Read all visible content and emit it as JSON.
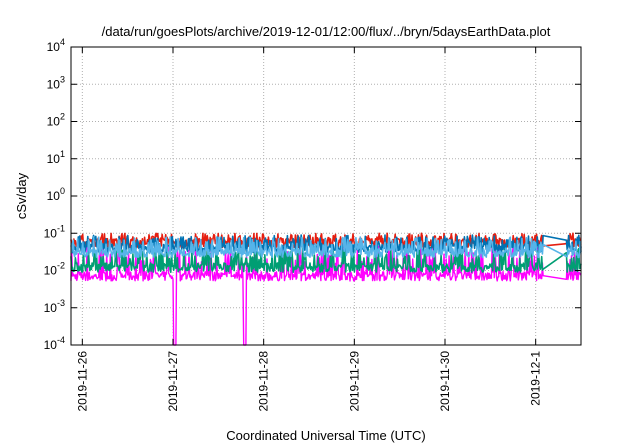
{
  "chart_data": {
    "type": "line",
    "title": "/data/run/goesPlots/archive/2019-12-01/12:00/flux/../bryn/5daysEarthData.plot",
    "xlabel": "Coordinated Universal Time (UTC)",
    "ylabel": "cSv/day",
    "y_scale": "log",
    "ylim": [
      0.0001,
      10000
    ],
    "y_ticks": [
      {
        "value": 0.0001,
        "base": "10",
        "exp": "-4"
      },
      {
        "value": 0.001,
        "base": "10",
        "exp": "-3"
      },
      {
        "value": 0.01,
        "base": "10",
        "exp": "-2"
      },
      {
        "value": 0.1,
        "base": "10",
        "exp": "-1"
      },
      {
        "value": 1,
        "base": "10",
        "exp": "0"
      },
      {
        "value": 10,
        "base": "10",
        "exp": "1"
      },
      {
        "value": 100,
        "base": "10",
        "exp": "2"
      },
      {
        "value": 1000,
        "base": "10",
        "exp": "3"
      },
      {
        "value": 10000,
        "base": "10",
        "exp": "4"
      }
    ],
    "xlim": [
      "2019-11-25T21:00",
      "2019-12-01T12:00"
    ],
    "x_ticks": [
      "2019-11-26",
      "2019-11-27",
      "2019-11-28",
      "2019-11-29",
      "2019-11-30",
      "2019-12-1"
    ],
    "grid": true,
    "series": [
      {
        "color": "#ff00ff",
        "typical": 0.007,
        "spike_max": 0.05,
        "dropouts": [
          "2019-11-27T00:30",
          "2019-11-27T19:00"
        ]
      },
      {
        "color": "#009e73",
        "typical": 0.012,
        "spike_max": 0.04
      },
      {
        "color": "#e51e10",
        "typical": 0.055,
        "spike_max": 0.1
      },
      {
        "color": "#0072b2",
        "typical": 0.04,
        "spike_max": 0.09
      },
      {
        "color": "#56b4e9",
        "typical": 0.03,
        "spike_max": 0.08
      }
    ],
    "data_gap": [
      "2019-12-01T02:00",
      "2019-12-01T08:00"
    ]
  }
}
